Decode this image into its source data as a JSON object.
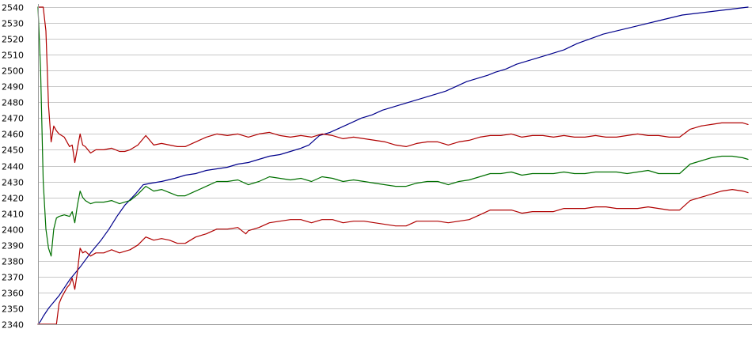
{
  "chart_data": {
    "type": "line",
    "title": "",
    "xlabel": "",
    "ylabel": "",
    "ylim": [
      2340,
      2540
    ],
    "x_count": 200,
    "y_ticks": [
      2340,
      2350,
      2360,
      2370,
      2380,
      2390,
      2400,
      2410,
      2420,
      2430,
      2440,
      2450,
      2460,
      2470,
      2480,
      2490,
      2500,
      2510,
      2520,
      2530,
      2540
    ],
    "grid": true,
    "legend": "none",
    "series": [
      {
        "color": "#00008b",
        "points": [
          [
            0,
            2340
          ],
          [
            1,
            2342
          ],
          [
            2,
            2345
          ],
          [
            4,
            2350
          ],
          [
            8,
            2358
          ],
          [
            12,
            2368
          ],
          [
            16,
            2376
          ],
          [
            20,
            2385
          ],
          [
            24,
            2393
          ],
          [
            27,
            2400
          ],
          [
            30,
            2408
          ],
          [
            33,
            2415
          ],
          [
            37,
            2422
          ],
          [
            40,
            2428
          ],
          [
            43,
            2429
          ],
          [
            47,
            2430
          ],
          [
            52,
            2432
          ],
          [
            56,
            2434
          ],
          [
            60,
            2435
          ],
          [
            64,
            2437
          ],
          [
            68,
            2438
          ],
          [
            72,
            2439
          ],
          [
            76,
            2441
          ],
          [
            80,
            2442
          ],
          [
            84,
            2444
          ],
          [
            88,
            2446
          ],
          [
            92,
            2447
          ],
          [
            96,
            2449
          ],
          [
            100,
            2451
          ],
          [
            103,
            2453
          ],
          [
            107,
            2459
          ],
          [
            111,
            2461
          ],
          [
            115,
            2464
          ],
          [
            119,
            2467
          ],
          [
            123,
            2470
          ],
          [
            127,
            2472
          ],
          [
            131,
            2475
          ],
          [
            135,
            2477
          ],
          [
            139,
            2479
          ],
          [
            143,
            2481
          ],
          [
            147,
            2483
          ],
          [
            151,
            2485
          ],
          [
            155,
            2487
          ],
          [
            159,
            2490
          ],
          [
            163,
            2493
          ],
          [
            167,
            2495
          ],
          [
            171,
            2497
          ],
          [
            174,
            2499
          ],
          [
            178,
            2501
          ],
          [
            182,
            2504
          ],
          [
            186,
            2506
          ],
          [
            190,
            2508
          ],
          [
            194,
            2510
          ],
          [
            198,
            2512
          ],
          [
            200,
            2513
          ],
          [
            205,
            2517
          ],
          [
            210,
            2520
          ],
          [
            215,
            2523
          ],
          [
            220,
            2525
          ],
          [
            225,
            2527
          ],
          [
            230,
            2529
          ],
          [
            235,
            2531
          ],
          [
            240,
            2533
          ],
          [
            245,
            2535
          ],
          [
            250,
            2536
          ],
          [
            255,
            2537
          ],
          [
            260,
            2538
          ],
          [
            265,
            2539
          ],
          [
            270,
            2540
          ]
        ]
      },
      {
        "color": "#b00000",
        "points": [
          [
            0,
            2540
          ],
          [
            1,
            2540
          ],
          [
            2,
            2540
          ],
          [
            3,
            2525
          ],
          [
            4,
            2478
          ],
          [
            5,
            2455
          ],
          [
            6,
            2465
          ],
          [
            7,
            2462
          ],
          [
            8,
            2460
          ],
          [
            10,
            2458
          ],
          [
            12,
            2452
          ],
          [
            13,
            2453
          ],
          [
            14,
            2442
          ],
          [
            15,
            2451
          ],
          [
            16,
            2460
          ],
          [
            17,
            2453
          ],
          [
            18,
            2452
          ],
          [
            20,
            2448
          ],
          [
            22,
            2450
          ],
          [
            25,
            2450
          ],
          [
            28,
            2451
          ],
          [
            31,
            2449
          ],
          [
            33,
            2449
          ],
          [
            35,
            2450
          ],
          [
            38,
            2453
          ],
          [
            41,
            2459
          ],
          [
            44,
            2453
          ],
          [
            47,
            2454
          ],
          [
            50,
            2453
          ],
          [
            53,
            2452
          ],
          [
            56,
            2452
          ],
          [
            60,
            2455
          ],
          [
            64,
            2458
          ],
          [
            68,
            2460
          ],
          [
            72,
            2459
          ],
          [
            76,
            2460
          ],
          [
            80,
            2458
          ],
          [
            84,
            2460
          ],
          [
            88,
            2461
          ],
          [
            92,
            2459
          ],
          [
            96,
            2458
          ],
          [
            100,
            2459
          ],
          [
            104,
            2458
          ],
          [
            108,
            2460
          ],
          [
            112,
            2459
          ],
          [
            116,
            2457
          ],
          [
            120,
            2458
          ],
          [
            124,
            2457
          ],
          [
            128,
            2456
          ],
          [
            132,
            2455
          ],
          [
            136,
            2453
          ],
          [
            140,
            2452
          ],
          [
            144,
            2454
          ],
          [
            148,
            2455
          ],
          [
            152,
            2455
          ],
          [
            156,
            2453
          ],
          [
            160,
            2455
          ],
          [
            164,
            2456
          ],
          [
            168,
            2458
          ],
          [
            172,
            2459
          ],
          [
            176,
            2459
          ],
          [
            180,
            2460
          ],
          [
            184,
            2458
          ],
          [
            188,
            2459
          ],
          [
            192,
            2459
          ],
          [
            196,
            2458
          ],
          [
            200,
            2459
          ],
          [
            204,
            2458
          ],
          [
            208,
            2458
          ],
          [
            212,
            2459
          ],
          [
            216,
            2458
          ],
          [
            220,
            2458
          ],
          [
            224,
            2459
          ],
          [
            228,
            2460
          ],
          [
            232,
            2459
          ],
          [
            236,
            2459
          ],
          [
            240,
            2458
          ],
          [
            244,
            2458
          ],
          [
            248,
            2463
          ],
          [
            252,
            2465
          ],
          [
            256,
            2466
          ],
          [
            260,
            2467
          ],
          [
            264,
            2467
          ],
          [
            268,
            2467
          ],
          [
            270,
            2466
          ]
        ]
      },
      {
        "color": "#007000",
        "points": [
          [
            0,
            2540
          ],
          [
            1,
            2500
          ],
          [
            2,
            2430
          ],
          [
            3,
            2400
          ],
          [
            4,
            2388
          ],
          [
            5,
            2383
          ],
          [
            6,
            2400
          ],
          [
            7,
            2407
          ],
          [
            8,
            2408
          ],
          [
            10,
            2409
          ],
          [
            12,
            2408
          ],
          [
            13,
            2411
          ],
          [
            14,
            2404
          ],
          [
            15,
            2415
          ],
          [
            16,
            2424
          ],
          [
            17,
            2420
          ],
          [
            18,
            2418
          ],
          [
            20,
            2416
          ],
          [
            22,
            2417
          ],
          [
            25,
            2417
          ],
          [
            28,
            2418
          ],
          [
            31,
            2416
          ],
          [
            33,
            2417
          ],
          [
            35,
            2418
          ],
          [
            38,
            2422
          ],
          [
            41,
            2427
          ],
          [
            44,
            2424
          ],
          [
            47,
            2425
          ],
          [
            50,
            2423
          ],
          [
            53,
            2421
          ],
          [
            56,
            2421
          ],
          [
            60,
            2424
          ],
          [
            64,
            2427
          ],
          [
            68,
            2430
          ],
          [
            72,
            2430
          ],
          [
            76,
            2431
          ],
          [
            80,
            2428
          ],
          [
            84,
            2430
          ],
          [
            88,
            2433
          ],
          [
            92,
            2432
          ],
          [
            96,
            2431
          ],
          [
            100,
            2432
          ],
          [
            104,
            2430
          ],
          [
            108,
            2433
          ],
          [
            112,
            2432
          ],
          [
            116,
            2430
          ],
          [
            120,
            2431
          ],
          [
            124,
            2430
          ],
          [
            128,
            2429
          ],
          [
            132,
            2428
          ],
          [
            136,
            2427
          ],
          [
            140,
            2427
          ],
          [
            144,
            2429
          ],
          [
            148,
            2430
          ],
          [
            152,
            2430
          ],
          [
            156,
            2428
          ],
          [
            160,
            2430
          ],
          [
            164,
            2431
          ],
          [
            168,
            2433
          ],
          [
            172,
            2435
          ],
          [
            176,
            2435
          ],
          [
            180,
            2436
          ],
          [
            184,
            2434
          ],
          [
            188,
            2435
          ],
          [
            192,
            2435
          ],
          [
            196,
            2435
          ],
          [
            200,
            2436
          ],
          [
            204,
            2435
          ],
          [
            208,
            2435
          ],
          [
            212,
            2436
          ],
          [
            216,
            2436
          ],
          [
            220,
            2436
          ],
          [
            224,
            2435
          ],
          [
            228,
            2436
          ],
          [
            232,
            2437
          ],
          [
            236,
            2435
          ],
          [
            240,
            2435
          ],
          [
            244,
            2435
          ],
          [
            248,
            2441
          ],
          [
            252,
            2443
          ],
          [
            256,
            2445
          ],
          [
            260,
            2446
          ],
          [
            264,
            2446
          ],
          [
            268,
            2445
          ],
          [
            270,
            2444
          ]
        ]
      },
      {
        "color": "#b00000",
        "points": [
          [
            0,
            2340
          ],
          [
            1,
            2340
          ],
          [
            3,
            2340
          ],
          [
            5,
            2340
          ],
          [
            7,
            2340
          ],
          [
            8,
            2353
          ],
          [
            9,
            2357
          ],
          [
            10,
            2360
          ],
          [
            11,
            2363
          ],
          [
            12,
            2365
          ],
          [
            13,
            2369
          ],
          [
            14,
            2362
          ],
          [
            15,
            2373
          ],
          [
            16,
            2388
          ],
          [
            17,
            2385
          ],
          [
            18,
            2386
          ],
          [
            20,
            2383
          ],
          [
            22,
            2385
          ],
          [
            25,
            2385
          ],
          [
            28,
            2387
          ],
          [
            31,
            2385
          ],
          [
            33,
            2386
          ],
          [
            35,
            2387
          ],
          [
            38,
            2390
          ],
          [
            41,
            2395
          ],
          [
            44,
            2393
          ],
          [
            47,
            2394
          ],
          [
            50,
            2393
          ],
          [
            53,
            2391
          ],
          [
            56,
            2391
          ],
          [
            60,
            2395
          ],
          [
            64,
            2397
          ],
          [
            68,
            2400
          ],
          [
            72,
            2400
          ],
          [
            76,
            2401
          ],
          [
            79,
            2397
          ],
          [
            80,
            2399
          ],
          [
            84,
            2401
          ],
          [
            88,
            2404
          ],
          [
            92,
            2405
          ],
          [
            96,
            2406
          ],
          [
            100,
            2406
          ],
          [
            104,
            2404
          ],
          [
            108,
            2406
          ],
          [
            112,
            2406
          ],
          [
            116,
            2404
          ],
          [
            120,
            2405
          ],
          [
            124,
            2405
          ],
          [
            128,
            2404
          ],
          [
            132,
            2403
          ],
          [
            136,
            2402
          ],
          [
            140,
            2402
          ],
          [
            144,
            2405
          ],
          [
            148,
            2405
          ],
          [
            152,
            2405
          ],
          [
            156,
            2404
          ],
          [
            160,
            2405
          ],
          [
            164,
            2406
          ],
          [
            168,
            2409
          ],
          [
            172,
            2412
          ],
          [
            176,
            2412
          ],
          [
            180,
            2412
          ],
          [
            184,
            2410
          ],
          [
            188,
            2411
          ],
          [
            192,
            2411
          ],
          [
            196,
            2411
          ],
          [
            200,
            2413
          ],
          [
            204,
            2413
          ],
          [
            208,
            2413
          ],
          [
            212,
            2414
          ],
          [
            216,
            2414
          ],
          [
            220,
            2413
          ],
          [
            224,
            2413
          ],
          [
            228,
            2413
          ],
          [
            232,
            2414
          ],
          [
            236,
            2413
          ],
          [
            240,
            2412
          ],
          [
            244,
            2412
          ],
          [
            248,
            2418
          ],
          [
            252,
            2420
          ],
          [
            256,
            2422
          ],
          [
            260,
            2424
          ],
          [
            264,
            2425
          ],
          [
            268,
            2424
          ],
          [
            270,
            2423
          ]
        ]
      }
    ]
  }
}
